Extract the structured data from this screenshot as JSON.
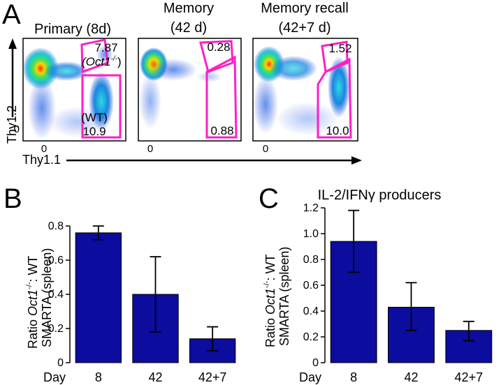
{
  "panel_a": {
    "letter": "A",
    "x_axis_label": "Thy1.1",
    "y_axis_label": "Thy1.2",
    "plots": [
      {
        "title_lines": [
          "Primary (8d)"
        ],
        "gate_top_value": "7.87",
        "gate_top_annotation": "(Oct1",
        "gate_top_annotation_sup": "-/-",
        "gate_bottom_annotation": "(WT)",
        "gate_bottom_value": "10.9",
        "x_tick": "0",
        "y_tick": "0"
      },
      {
        "title_lines": [
          "Memory",
          "(42 d)"
        ],
        "gate_top_value": "0.28",
        "gate_bottom_value": "0.88",
        "x_tick": "0"
      },
      {
        "title_lines": [
          "Memory recall",
          "(42+7 d)"
        ],
        "gate_top_value": "1.52",
        "gate_bottom_value": "10.0",
        "x_tick": "0"
      }
    ]
  },
  "chart_data": [
    {
      "type": "bar",
      "panel": "B",
      "title": "",
      "categories": [
        "8",
        "42",
        "42+7"
      ],
      "values": [
        0.76,
        0.4,
        0.14
      ],
      "error_low": [
        0.72,
        0.18,
        0.07
      ],
      "error_high": [
        0.8,
        0.62,
        0.21
      ],
      "xlabel": "Day",
      "ylabel_line1_prefix": "Ratio ",
      "ylabel_line1_italic": "Oct1",
      "ylabel_line1_sup": "-/-",
      "ylabel_line1_suffix": ": WT",
      "ylabel_line2": "SMARTA (spleen)",
      "ylim": [
        0,
        0.8
      ],
      "ytick_labels": [
        "0",
        "0.2",
        "0.4",
        "0.6",
        "0.8"
      ],
      "bar_color": "#0c0c9e"
    },
    {
      "type": "bar",
      "panel": "C",
      "title": "IL-2/IFNγ producers",
      "categories": [
        "8",
        "42",
        "42+7"
      ],
      "values": [
        0.94,
        0.43,
        0.25
      ],
      "error_low": [
        0.7,
        0.25,
        0.17
      ],
      "error_high": [
        1.18,
        0.62,
        0.32
      ],
      "xlabel": "Day",
      "ylabel_line1_prefix": "Ratio ",
      "ylabel_line1_italic": "Oct1",
      "ylabel_line1_sup": "-/-",
      "ylabel_line1_suffix": ": WT",
      "ylabel_line2": "SMARTA (spleen)",
      "ylim": [
        0,
        1.2
      ],
      "ytick_labels": [
        "0",
        "0.2",
        "0.4",
        "0.6",
        "0.8",
        "1.0",
        "1.2"
      ],
      "bar_color": "#0c0c9e"
    }
  ],
  "panel_b": {
    "letter": "B"
  },
  "panel_c": {
    "letter": "C"
  }
}
